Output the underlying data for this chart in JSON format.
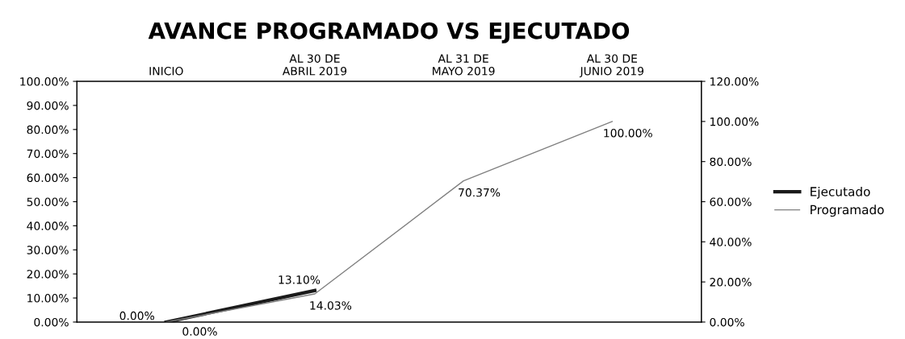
{
  "chart_data": {
    "type": "line",
    "title": "AVANCE PROGRAMADO VS EJECUTADO",
    "categories": [
      "INICIO",
      "AL 30 DE\nABRIL 2019",
      "AL 31 DE\nMAYO 2019",
      "AL 30 DE\nJUNIO 2019"
    ],
    "series": [
      {
        "name": "Ejecutado",
        "color": "#1a1a1a",
        "values": [
          0,
          13.1,
          null,
          null
        ],
        "value_labels": [
          "0.00%",
          "13.10%",
          null,
          null
        ]
      },
      {
        "name": "Programado",
        "color": "#808080",
        "axis": "y2",
        "values": [
          0,
          14.03,
          70.37,
          100.0
        ],
        "value_labels": [
          "0.00%",
          "14.03%",
          "70.37%",
          "100.00%"
        ]
      }
    ],
    "ylim": [
      0,
      100
    ],
    "yticks": [
      {
        "value": 0,
        "label": "0.00%"
      },
      {
        "value": 10,
        "label": "10.00%"
      },
      {
        "value": 20,
        "label": "20.00%"
      },
      {
        "value": 30,
        "label": "30.00%"
      },
      {
        "value": 40,
        "label": "40.00%"
      },
      {
        "value": 50,
        "label": "50.00%"
      },
      {
        "value": 60,
        "label": "60.00%"
      },
      {
        "value": 70,
        "label": "70.00%"
      },
      {
        "value": 80,
        "label": "80.00%"
      },
      {
        "value": 90,
        "label": "90.00%"
      },
      {
        "value": 100,
        "label": "100.00%"
      }
    ],
    "y2lim": [
      0,
      120
    ],
    "y2ticks": [
      {
        "value": 0,
        "label": "0.00%"
      },
      {
        "value": 20,
        "label": "20.00%"
      },
      {
        "value": 40,
        "label": "40.00%"
      },
      {
        "value": 60,
        "label": "60.00%"
      },
      {
        "value": 80,
        "label": "80.00%"
      },
      {
        "value": 100,
        "label": "100.00%"
      },
      {
        "value": 120,
        "label": "120.00%"
      }
    ],
    "grid": false,
    "legend": "right",
    "marker": "none",
    "line_style": "solid"
  }
}
